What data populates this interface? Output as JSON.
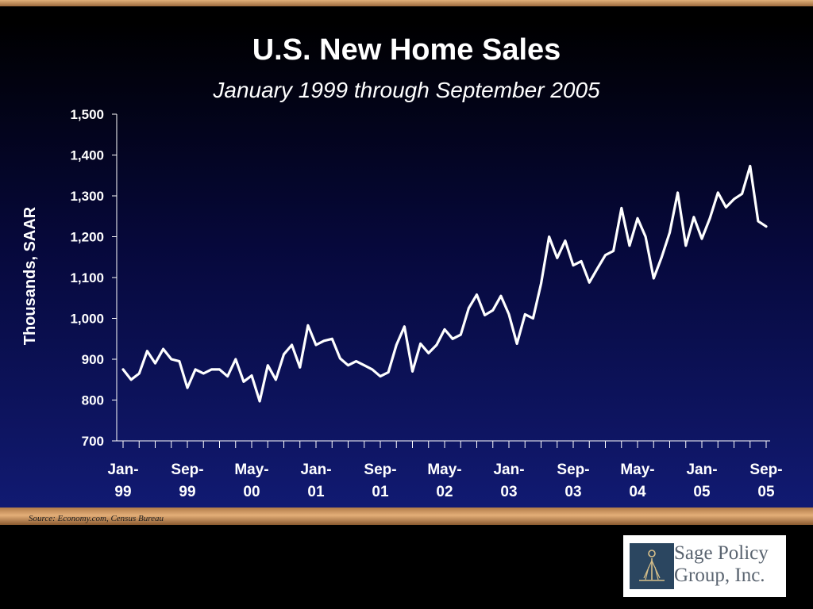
{
  "title": "U.S. New Home Sales",
  "subtitle": "January 1999 through September 2005",
  "source": "Source: Economy.com, Census Bureau",
  "logo": {
    "line1": "Sage Policy",
    "line2": "Group, Inc."
  },
  "colors": {
    "line": "#ffffff",
    "panel_top": "#000000",
    "panel_bottom": "#111a72",
    "accent": "#c8925e"
  },
  "chart_data": {
    "type": "line",
    "ylabel": "Thousands, SAAR",
    "ylim": [
      700,
      1500
    ],
    "yticks": [
      700,
      800,
      900,
      1000,
      1100,
      1200,
      1300,
      1400,
      1500
    ],
    "ytick_labels": [
      "700",
      "800",
      "900",
      "1,000",
      "1,100",
      "1,200",
      "1,300",
      "1,400",
      "1,500"
    ],
    "xtick_labels": [
      {
        "index": 0,
        "line1": "Jan-",
        "line2": "99"
      },
      {
        "index": 8,
        "line1": "Sep-",
        "line2": "99"
      },
      {
        "index": 16,
        "line1": "May-",
        "line2": "00"
      },
      {
        "index": 24,
        "line1": "Jan-",
        "line2": "01"
      },
      {
        "index": 32,
        "line1": "Sep-",
        "line2": "01"
      },
      {
        "index": 40,
        "line1": "May-",
        "line2": "02"
      },
      {
        "index": 48,
        "line1": "Jan-",
        "line2": "03"
      },
      {
        "index": 56,
        "line1": "Sep-",
        "line2": "03"
      },
      {
        "index": 64,
        "line1": "May-",
        "line2": "04"
      },
      {
        "index": 72,
        "line1": "Jan-",
        "line2": "05"
      },
      {
        "index": 80,
        "line1": "Sep-",
        "line2": "05"
      }
    ],
    "grid": false,
    "series": [
      {
        "values": [
          875,
          850,
          865,
          920,
          890,
          925,
          900,
          895,
          830,
          875,
          865,
          875,
          875,
          858,
          900,
          845,
          860,
          797,
          885,
          850,
          912,
          935,
          880,
          983,
          935,
          945,
          950,
          902,
          885,
          895,
          885,
          875,
          858,
          868,
          935,
          980,
          870,
          938,
          915,
          935,
          973,
          950,
          960,
          1025,
          1058,
          1008,
          1020,
          1055,
          1010,
          938,
          1010,
          1000,
          1085,
          1200,
          1148,
          1190,
          1130,
          1140,
          1088,
          1122,
          1155,
          1165,
          1270,
          1178,
          1245,
          1200,
          1098,
          1150,
          1210,
          1308,
          1178,
          1248,
          1195,
          1245,
          1308,
          1272,
          1292,
          1305,
          1373,
          1238,
          1225
        ]
      }
    ]
  }
}
